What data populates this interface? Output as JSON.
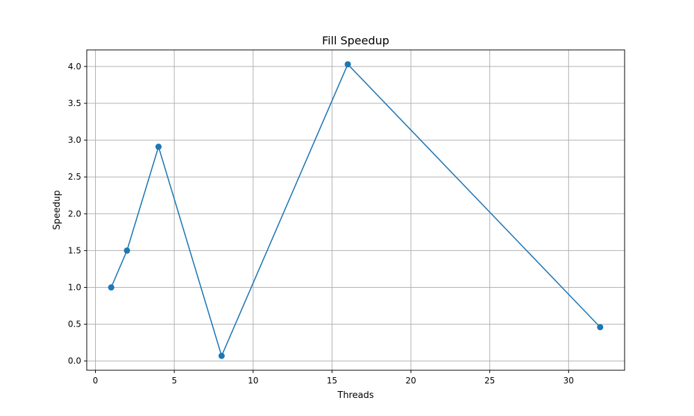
{
  "chart_data": {
    "type": "line",
    "title": "Fill Speedup",
    "xlabel": "Threads",
    "ylabel": "Speedup",
    "xlim": [
      -0.55,
      33.55
    ],
    "ylim": [
      -0.125,
      4.225
    ],
    "xticks": [
      0,
      5,
      10,
      15,
      20,
      25,
      30
    ],
    "xtick_labels": [
      "0",
      "5",
      "10",
      "15",
      "20",
      "25",
      "30"
    ],
    "yticks": [
      0.0,
      0.5,
      1.0,
      1.5,
      2.0,
      2.5,
      3.0,
      3.5,
      4.0
    ],
    "ytick_labels": [
      "0.0",
      "0.5",
      "1.0",
      "1.5",
      "2.0",
      "2.5",
      "3.0",
      "3.5",
      "4.0"
    ],
    "grid": true,
    "series": [
      {
        "x": [
          1,
          2,
          4,
          8,
          16,
          32
        ],
        "y": [
          1.0,
          1.5,
          2.91,
          0.07,
          4.03,
          0.46
        ],
        "color": "#1f77b4",
        "marker": "circle"
      }
    ]
  }
}
